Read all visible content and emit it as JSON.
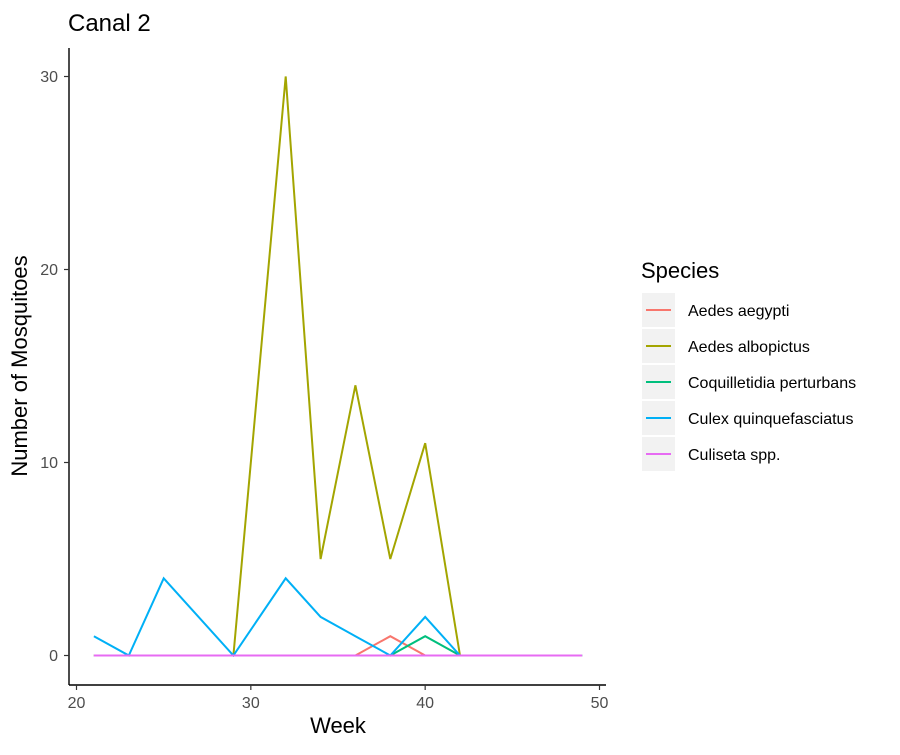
{
  "chart_data": {
    "type": "line",
    "title": "Canal 2",
    "xlabel": "Week",
    "ylabel": "Number of Mosquitoes",
    "xlim": [
      20,
      50
    ],
    "ylim": [
      0,
      30
    ],
    "x_ticks": [
      20,
      30,
      40,
      50
    ],
    "y_ticks": [
      0,
      10,
      20,
      30
    ],
    "grid": false,
    "legend": {
      "title": "Species",
      "position": "right"
    },
    "series": [
      {
        "name": "Aedes aegypti",
        "color": "#F8766D",
        "points": [
          [
            21,
            0
          ],
          [
            23,
            0
          ],
          [
            25,
            0
          ],
          [
            29,
            0
          ],
          [
            32,
            0
          ],
          [
            34,
            0
          ],
          [
            36,
            0
          ],
          [
            38,
            1
          ],
          [
            40,
            0
          ],
          [
            42,
            0
          ],
          [
            49,
            0
          ]
        ]
      },
      {
        "name": "Aedes albopictus",
        "color": "#A3A500",
        "points": [
          [
            21,
            0
          ],
          [
            23,
            0
          ],
          [
            25,
            0
          ],
          [
            29,
            0
          ],
          [
            32,
            30
          ],
          [
            34,
            5
          ],
          [
            36,
            14
          ],
          [
            38,
            5
          ],
          [
            40,
            11
          ],
          [
            42,
            0
          ],
          [
            49,
            0
          ]
        ]
      },
      {
        "name": "Coquilletidia perturbans",
        "color": "#00BF7D",
        "points": [
          [
            21,
            0
          ],
          [
            23,
            0
          ],
          [
            25,
            0
          ],
          [
            29,
            0
          ],
          [
            32,
            0
          ],
          [
            34,
            0
          ],
          [
            36,
            0
          ],
          [
            38,
            0
          ],
          [
            40,
            1
          ],
          [
            42,
            0
          ],
          [
            49,
            0
          ]
        ]
      },
      {
        "name": "Culex quinquefasciatus",
        "color": "#00B0F6",
        "points": [
          [
            21,
            1
          ],
          [
            23,
            0
          ],
          [
            25,
            4
          ],
          [
            29,
            0
          ],
          [
            32,
            4
          ],
          [
            34,
            2
          ],
          [
            36,
            1
          ],
          [
            38,
            0
          ],
          [
            40,
            2
          ],
          [
            42,
            0
          ],
          [
            49,
            0
          ]
        ]
      },
      {
        "name": "Culiseta spp.",
        "color": "#E76BF3",
        "points": [
          [
            21,
            0
          ],
          [
            23,
            0
          ],
          [
            25,
            0
          ],
          [
            29,
            0
          ],
          [
            32,
            0
          ],
          [
            34,
            0
          ],
          [
            36,
            0
          ],
          [
            38,
            0
          ],
          [
            40,
            0
          ],
          [
            42,
            0
          ],
          [
            49,
            0
          ]
        ]
      }
    ]
  }
}
